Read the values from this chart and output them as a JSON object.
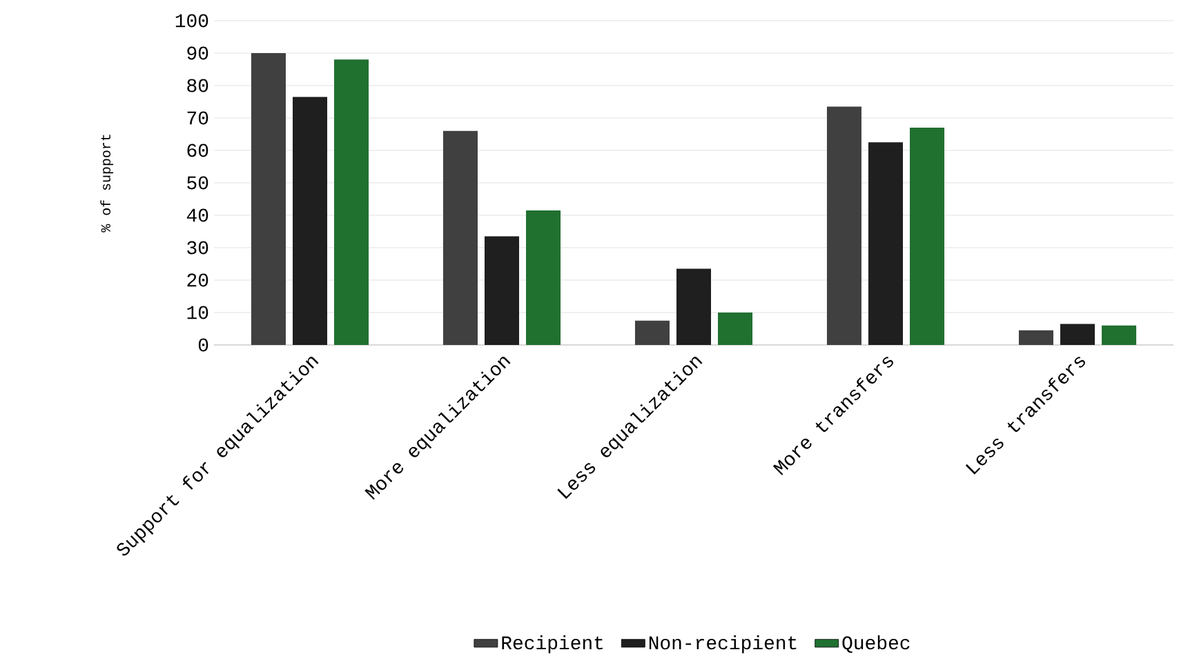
{
  "chart_data": {
    "type": "bar",
    "ylabel": "% of support",
    "categories": [
      "Support for equalization",
      "More equalization",
      "Less equalization",
      "More transfers",
      "Less transfers"
    ],
    "series": [
      {
        "name": "Recipient",
        "color": "#404040",
        "values": [
          90,
          66,
          7.5,
          73.5,
          4.5
        ]
      },
      {
        "name": "Non-recipient",
        "color": "#1f1f1f",
        "values": [
          76.5,
          33.5,
          23.5,
          62.5,
          6.5
        ]
      },
      {
        "name": "Quebec",
        "color": "#207030",
        "values": [
          88,
          41.5,
          10,
          67,
          6
        ]
      }
    ],
    "ylim": [
      0,
      100
    ],
    "yticks": [
      0,
      10,
      20,
      30,
      40,
      50,
      60,
      70,
      80,
      90,
      100
    ],
    "grid": "y",
    "legend": "bottom"
  }
}
